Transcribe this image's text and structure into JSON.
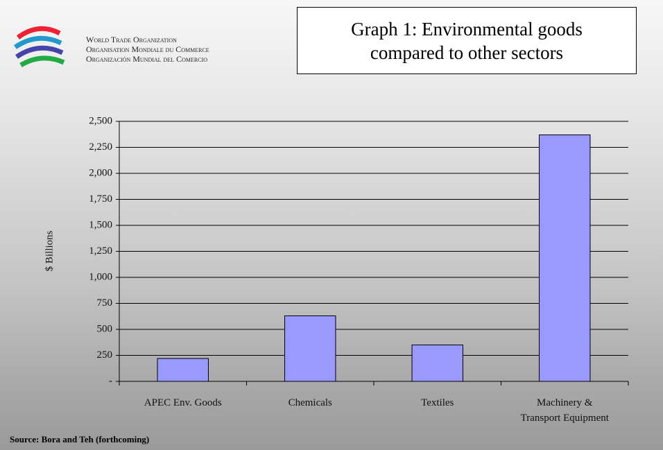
{
  "header": {
    "org_lines": [
      "World Trade Organization",
      "Organisation Mondiale du Commerce",
      "Organización Mundial del Comercio"
    ]
  },
  "chart_data": {
    "type": "bar",
    "title": "Graph 1: Environmental goods compared to other sectors",
    "y_label": "$ Billions",
    "categories": [
      "APEC Env. Goods",
      "Chemicals",
      "Textiles",
      "Machinery & Transport Equipment"
    ],
    "values": [
      220,
      630,
      350,
      2370
    ],
    "color": "#9999ff",
    "ylim": [
      0,
      2500
    ],
    "yticks": [
      {
        "value": 0,
        "label": "-"
      },
      250,
      500,
      750,
      {
        "value": 1000,
        "label": "1,000"
      },
      {
        "value": 1250,
        "label": "1,250"
      },
      {
        "value": 1500,
        "label": "1,500"
      },
      {
        "value": 1750,
        "label": "1,750"
      },
      {
        "value": 2000,
        "label": "2,000"
      },
      {
        "value": 2250,
        "label": "2,250"
      },
      {
        "value": 2500,
        "label": "2,500"
      }
    ],
    "grid": true,
    "source": "Source: Bora and Teh (forthcoming)"
  }
}
